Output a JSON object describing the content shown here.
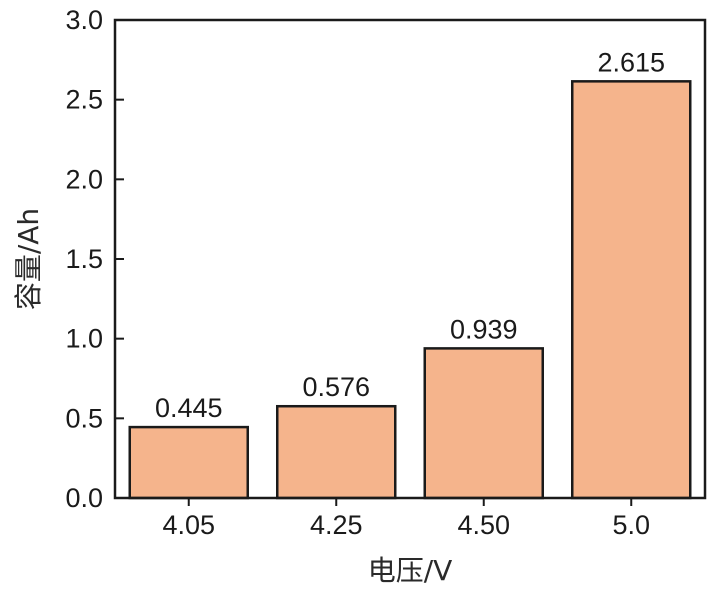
{
  "chart_data": {
    "type": "bar",
    "categories": [
      "4.05",
      "4.25",
      "4.50",
      "5.0"
    ],
    "values": [
      0.445,
      0.576,
      0.939,
      2.615
    ],
    "data_labels": [
      "0.445",
      "0.576",
      "0.939",
      "2.615"
    ],
    "xlabel": "电压/V",
    "ylabel": "容量/Ah",
    "ylim": [
      0,
      3.0
    ],
    "yticks": [
      "0.0",
      "0.5",
      "1.0",
      "1.5",
      "2.0",
      "2.5",
      "3.0"
    ],
    "grid": false,
    "bar_color": "#F5B48C",
    "bar_edge_color": "#1a1a1a"
  }
}
